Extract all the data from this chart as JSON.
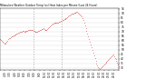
{
  "title": "Milwaukee Weather Outdoor Temp (vs) Heat Index per Minute (Last 24 Hours)",
  "bg_color": "#ffffff",
  "line_color": "#cc0000",
  "grid_color": "#dddddd",
  "vline_color": "#aaaaaa",
  "vline_positions": [
    0.28,
    0.52
  ],
  "ylim": [
    28,
    96
  ],
  "yticks": [
    30,
    35,
    40,
    45,
    50,
    55,
    60,
    65,
    70,
    75,
    80,
    85,
    90,
    95
  ],
  "num_points": 144,
  "x_values": [
    0,
    1,
    2,
    3,
    4,
    5,
    6,
    7,
    8,
    9,
    10,
    11,
    12,
    13,
    14,
    15,
    16,
    17,
    18,
    19,
    20,
    21,
    22,
    23,
    24,
    25,
    26,
    27,
    28,
    29,
    30,
    31,
    32,
    33,
    34,
    35,
    36,
    37,
    38,
    39,
    40,
    41,
    42,
    43,
    44,
    45,
    46,
    47,
    48,
    49,
    50,
    51,
    52,
    53,
    54,
    55,
    56,
    57,
    58,
    59,
    60,
    61,
    62,
    63,
    64,
    65,
    66,
    67,
    68,
    69,
    70,
    71,
    72,
    73,
    74,
    75,
    76,
    77,
    78,
    79,
    80,
    81,
    82,
    83,
    84,
    85,
    86,
    87,
    88,
    89,
    90,
    91,
    92,
    93,
    94,
    95,
    96,
    97,
    98,
    99,
    100,
    101,
    102,
    103,
    104,
    105,
    106,
    107,
    108,
    109,
    110,
    111,
    112,
    113,
    114,
    115,
    116,
    117,
    118,
    119,
    120,
    121,
    122,
    123,
    124,
    125,
    126,
    127,
    128,
    129,
    130,
    131,
    132,
    133,
    134,
    135,
    136,
    137,
    138,
    139,
    140,
    141,
    142,
    143
  ],
  "y_values": [
    62,
    61,
    60,
    59,
    58,
    57,
    57,
    58,
    59,
    60,
    62,
    63,
    63,
    64,
    65,
    65,
    66,
    66,
    67,
    67,
    68,
    68,
    69,
    69,
    70,
    70,
    70,
    71,
    71,
    70,
    70,
    71,
    71,
    71,
    72,
    72,
    72,
    72,
    72,
    72,
    71,
    71,
    70,
    70,
    70,
    70,
    71,
    71,
    72,
    72,
    73,
    73,
    74,
    73,
    72,
    72,
    72,
    73,
    74,
    75,
    76,
    77,
    78,
    79,
    79,
    80,
    80,
    80,
    80,
    80,
    80,
    81,
    81,
    82,
    82,
    83,
    83,
    84,
    84,
    85,
    85,
    86,
    87,
    88,
    88,
    89,
    90,
    90,
    90,
    91,
    91,
    91,
    92,
    92,
    91,
    90,
    89,
    88,
    87,
    85,
    83,
    80,
    77,
    74,
    71,
    68,
    65,
    62,
    59,
    56,
    53,
    50,
    47,
    44,
    41,
    38,
    35,
    33,
    31,
    30,
    29,
    30,
    31,
    32,
    33,
    34,
    35,
    36,
    37,
    38,
    39,
    40,
    41,
    42,
    43,
    44,
    45,
    43,
    41,
    40,
    38,
    36,
    34,
    32
  ]
}
